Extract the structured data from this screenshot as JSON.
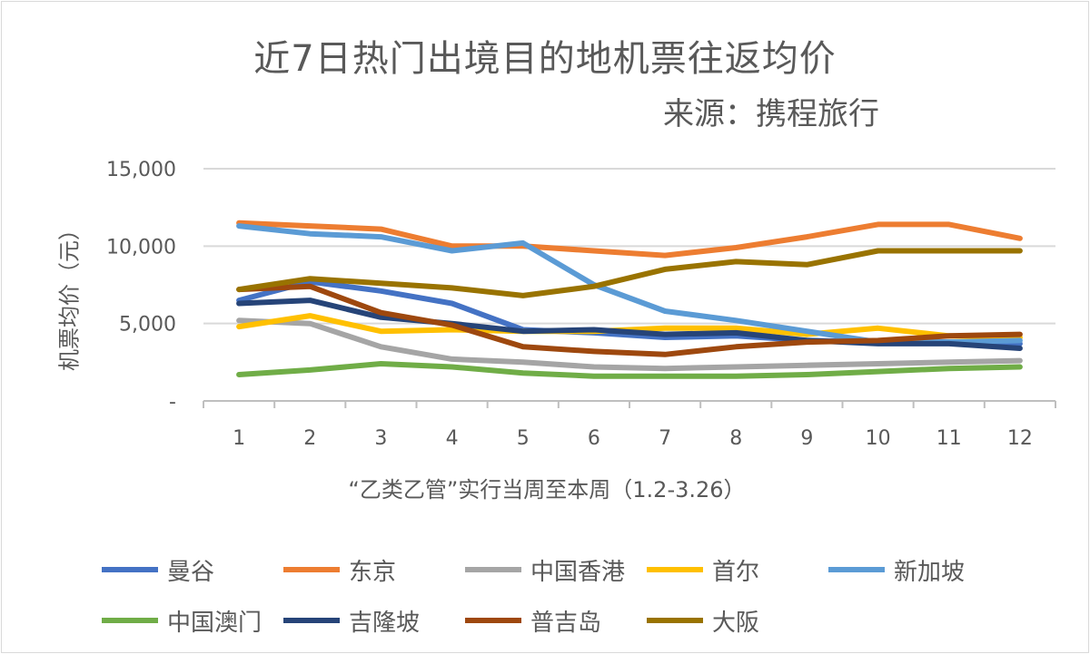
{
  "chart_data": {
    "type": "line",
    "title": "近7日热门出境目的地机票往返均价",
    "subtitle": "来源：携程旅行",
    "xlabel": "“乙类乙管”实行当周至本周（1.2-3.26）",
    "ylabel": "机票均价（元）",
    "categories": [
      "1",
      "2",
      "3",
      "4",
      "5",
      "6",
      "7",
      "8",
      "9",
      "10",
      "11",
      "12"
    ],
    "ylim": [
      0,
      15000
    ],
    "yticks": [
      0,
      5000,
      10000,
      15000
    ],
    "ytick_labels": [
      "-",
      "5,000",
      "10,000",
      "15,000"
    ],
    "grid": "horizontal",
    "legend_position": "bottom",
    "series": [
      {
        "name": "曼谷",
        "color": "#4472C4",
        "values": [
          6500,
          7700,
          7100,
          6300,
          4600,
          4400,
          4100,
          4200,
          3900,
          3800,
          3800,
          3700
        ]
      },
      {
        "name": "东京",
        "color": "#ED7D31",
        "values": [
          11500,
          11300,
          11100,
          10000,
          10000,
          9700,
          9400,
          9900,
          10600,
          11400,
          11400,
          10500
        ]
      },
      {
        "name": "中国香港",
        "color": "#A5A5A5",
        "values": [
          5200,
          5000,
          3500,
          2700,
          2500,
          2200,
          2100,
          2200,
          2300,
          2400,
          2500,
          2600
        ]
      },
      {
        "name": "首尔",
        "color": "#FFC000",
        "values": [
          4800,
          5500,
          4500,
          4600,
          4500,
          4500,
          4700,
          4700,
          4300,
          4700,
          4200,
          4100
        ]
      },
      {
        "name": "新加坡",
        "color": "#5B9BD5",
        "values": [
          11300,
          10800,
          10600,
          9700,
          10200,
          7500,
          5800,
          5200,
          4500,
          3800,
          3800,
          3900
        ]
      },
      {
        "name": "中国澳门",
        "color": "#70AD47",
        "values": [
          1700,
          2000,
          2400,
          2200,
          1800,
          1600,
          1600,
          1600,
          1700,
          1900,
          2100,
          2200
        ]
      },
      {
        "name": "吉隆坡",
        "color": "#264478",
        "values": [
          6300,
          6500,
          5400,
          5000,
          4500,
          4600,
          4300,
          4400,
          3900,
          3700,
          3700,
          3400
        ]
      },
      {
        "name": "普吉岛",
        "color": "#9E480E",
        "values": [
          7200,
          7400,
          5700,
          4900,
          3500,
          3200,
          3000,
          3500,
          3800,
          3900,
          4200,
          4300
        ]
      },
      {
        "name": "大阪",
        "color": "#997300",
        "values": [
          7200,
          7900,
          7600,
          7300,
          6800,
          7400,
          8500,
          9000,
          8800,
          9700,
          9700,
          9700
        ]
      }
    ]
  }
}
